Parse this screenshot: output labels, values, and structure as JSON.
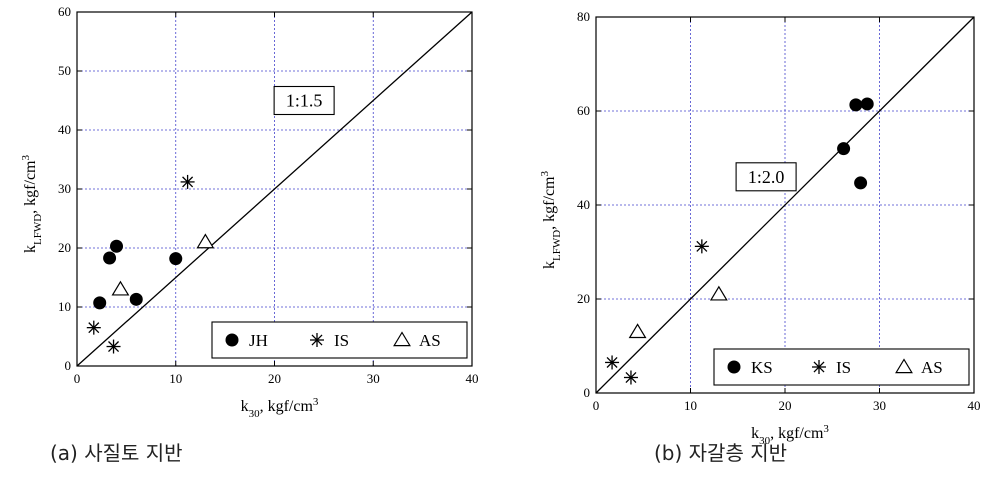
{
  "captions": [
    "(a) 사질토 지반",
    "(b) 자갈층 지반"
  ],
  "chart_data": [
    {
      "type": "scatter",
      "xlabel": {
        "main": "k",
        "sub": "30",
        "rest": ", kgf/cm",
        "sup": "3"
      },
      "ylabel": {
        "main": "k",
        "sub": "LFWD",
        "rest": ", kgf/cm",
        "sup": "3"
      },
      "xlim": [
        0,
        40
      ],
      "ylim": [
        0,
        60
      ],
      "xticks": [
        0,
        10,
        20,
        30,
        40
      ],
      "yticks": [
        0,
        10,
        20,
        30,
        40,
        50,
        60
      ],
      "grid": true,
      "legend_position": "bottom-right",
      "reference_line": {
        "slope": 1.5,
        "label": "1:1.5",
        "label_at": [
          23,
          45
        ]
      },
      "series": [
        {
          "name": "JH",
          "marker": "filled-circle",
          "points": [
            [
              2.3,
              10.7
            ],
            [
              3.3,
              18.3
            ],
            [
              4.0,
              20.3
            ],
            [
              6.0,
              11.3
            ],
            [
              10.0,
              18.2
            ]
          ]
        },
        {
          "name": "IS",
          "marker": "asterisk",
          "points": [
            [
              1.7,
              6.5
            ],
            [
              3.7,
              3.3
            ],
            [
              11.2,
              31.2
            ]
          ]
        },
        {
          "name": "AS",
          "marker": "open-triangle",
          "points": [
            [
              4.4,
              13.0
            ],
            [
              13.0,
              21.0
            ]
          ]
        }
      ]
    },
    {
      "type": "scatter",
      "xlabel": {
        "main": "k",
        "sub": "30",
        "rest": ", kgf/cm",
        "sup": "3"
      },
      "ylabel": {
        "main": "k",
        "sub": "LFWD",
        "rest": ", kgf/cm",
        "sup": "3"
      },
      "xlim": [
        0,
        40
      ],
      "ylim": [
        0,
        80
      ],
      "xticks": [
        0,
        10,
        20,
        30,
        40
      ],
      "yticks": [
        0,
        20,
        40,
        60,
        80
      ],
      "grid": true,
      "legend_position": "bottom-right",
      "reference_line": {
        "slope": 2.0,
        "label": "1:2.0",
        "label_at": [
          18,
          46
        ]
      },
      "series": [
        {
          "name": "KS",
          "marker": "filled-circle",
          "points": [
            [
              26.2,
              52.0
            ],
            [
              27.5,
              61.3
            ],
            [
              28.0,
              44.7
            ],
            [
              28.7,
              61.5
            ]
          ]
        },
        {
          "name": "IS",
          "marker": "asterisk",
          "points": [
            [
              1.7,
              6.5
            ],
            [
              3.7,
              3.3
            ],
            [
              11.2,
              31.2
            ]
          ]
        },
        {
          "name": "AS",
          "marker": "open-triangle",
          "points": [
            [
              4.4,
              13.0
            ],
            [
              13.0,
              21.0
            ]
          ]
        }
      ]
    }
  ]
}
